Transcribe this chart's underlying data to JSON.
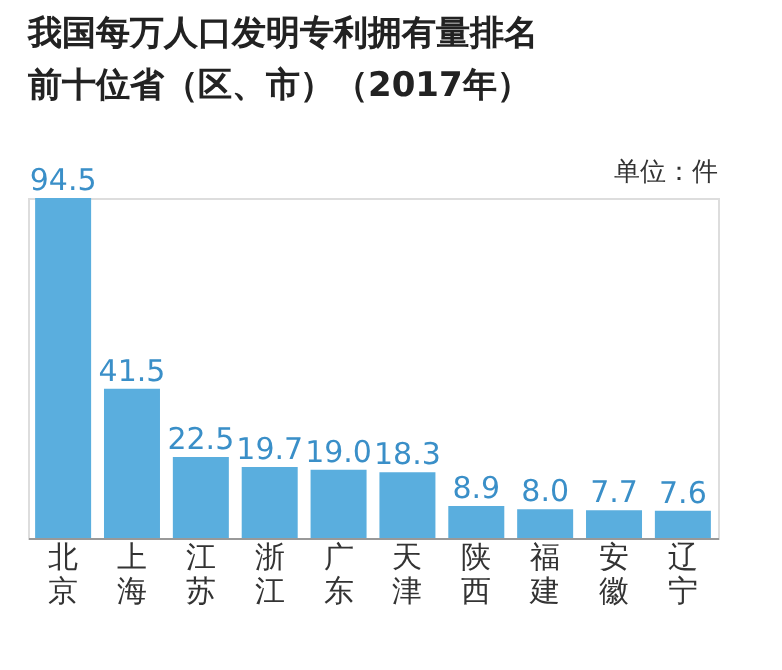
{
  "chart_data": {
    "type": "bar",
    "title": "我国每万人口发明专利拥有量排名前十位省（区、市）（2017年）",
    "annotations": [
      "单位：件"
    ],
    "categories": [
      "北京",
      "上海",
      "江苏",
      "浙江",
      "广东",
      "天津",
      "陕西",
      "福建",
      "安徽",
      "辽宁"
    ],
    "values": [
      94.5,
      41.5,
      22.5,
      19.7,
      19.0,
      18.3,
      8.9,
      8.0,
      7.7,
      7.6
    ],
    "value_labels": [
      "94.5",
      "41.5",
      "22.5",
      "19.7",
      "19.0",
      "18.3",
      "8.9",
      "8.0",
      "7.7",
      "7.6"
    ],
    "color": "#5aaede",
    "grid": false,
    "tick_labels": "x"
  }
}
